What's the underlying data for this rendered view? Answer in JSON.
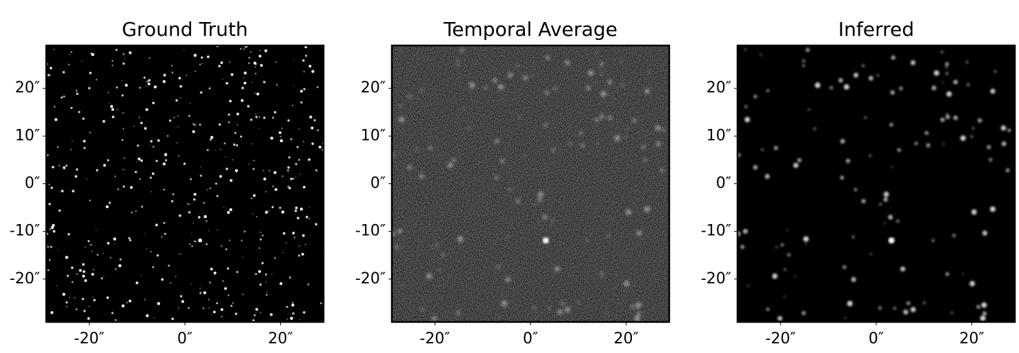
{
  "chart_data": [
    {
      "type": "image",
      "title": "Ground Truth",
      "style": "sharp",
      "xlim": [
        -29,
        29
      ],
      "ylim": [
        -29,
        29
      ],
      "xticks": [
        {
          "value": -20,
          "label": "-20″"
        },
        {
          "value": 0,
          "label": "0″"
        },
        {
          "value": 20,
          "label": "20″"
        }
      ],
      "yticks": [
        {
          "value": 20,
          "label": "20″"
        },
        {
          "value": 10,
          "label": "10″"
        },
        {
          "value": 0,
          "label": "0″"
        },
        {
          "value": -10,
          "label": "-10″"
        },
        {
          "value": -20,
          "label": "-20″"
        }
      ]
    },
    {
      "type": "image",
      "title": "Temporal Average",
      "style": "noisy",
      "xlim": [
        -29,
        29
      ],
      "ylim": [
        -29,
        29
      ],
      "xticks": [
        {
          "value": -20,
          "label": "-20″"
        },
        {
          "value": 0,
          "label": "0″"
        },
        {
          "value": 20,
          "label": "20″"
        }
      ],
      "yticks": [
        {
          "value": 20,
          "label": "20″"
        },
        {
          "value": 10,
          "label": "10″"
        },
        {
          "value": 0,
          "label": "0″"
        },
        {
          "value": -10,
          "label": "-10″"
        },
        {
          "value": -20,
          "label": "-20″"
        }
      ]
    },
    {
      "type": "image",
      "title": "Inferred",
      "style": "blurred",
      "xlim": [
        -29,
        29
      ],
      "ylim": [
        -29,
        29
      ],
      "xticks": [
        {
          "value": -20,
          "label": "-20″"
        },
        {
          "value": 0,
          "label": "0″"
        },
        {
          "value": 20,
          "label": "20″"
        }
      ],
      "yticks": [
        {
          "value": 20,
          "label": "20″"
        },
        {
          "value": 10,
          "label": "10″"
        },
        {
          "value": 0,
          "label": "0″"
        },
        {
          "value": -10,
          "label": "-10″"
        },
        {
          "value": -20,
          "label": "-20″"
        }
      ]
    }
  ]
}
